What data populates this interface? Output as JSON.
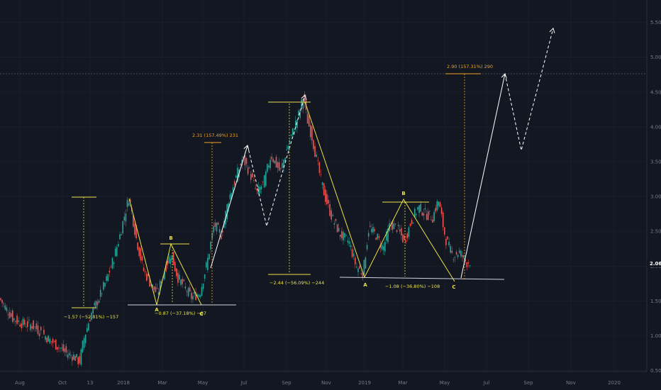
{
  "chart_data": {
    "type": "candlestick",
    "x_tick_labels": [
      "Aug",
      "Oct",
      "13",
      "2018",
      "Mar",
      "May",
      "Jul",
      "Sep",
      "Nov",
      "2019",
      "Mar",
      "May",
      "Jul",
      "Sep",
      "Nov",
      "2020"
    ],
    "y_tick_labels": [
      "0.50",
      "1.00",
      "1.50",
      "2.00",
      "2.50",
      "3.00",
      "3.50",
      "4.00",
      "4.50",
      "5.00",
      "5.50"
    ],
    "ylim": [
      0.5,
      5.55
    ],
    "last_price": "2.06",
    "price_path": [
      [
        0,
        1.53
      ],
      [
        8,
        1.4
      ],
      [
        18,
        1.25
      ],
      [
        30,
        1.18
      ],
      [
        45,
        1.15
      ],
      [
        58,
        1.05
      ],
      [
        72,
        0.92
      ],
      [
        85,
        0.82
      ],
      [
        95,
        0.74
      ],
      [
        105,
        0.7
      ],
      [
        112,
        0.62
      ],
      [
        118,
        0.95
      ],
      [
        128,
        1.3
      ],
      [
        140,
        1.55
      ],
      [
        150,
        1.8
      ],
      [
        160,
        2.1
      ],
      [
        168,
        2.4
      ],
      [
        176,
        2.75
      ],
      [
        182,
        3.0
      ],
      [
        192,
        2.4
      ],
      [
        202,
        1.95
      ],
      [
        212,
        1.75
      ],
      [
        222,
        1.6
      ],
      [
        232,
        1.95
      ],
      [
        241,
        2.18
      ],
      [
        250,
        1.85
      ],
      [
        260,
        1.7
      ],
      [
        270,
        1.55
      ],
      [
        282,
        1.62
      ],
      [
        292,
        2.05
      ],
      [
        302,
        2.6
      ],
      [
        312,
        2.45
      ],
      [
        322,
        2.95
      ],
      [
        332,
        3.25
      ],
      [
        342,
        3.55
      ],
      [
        352,
        3.35
      ],
      [
        362,
        3.05
      ],
      [
        372,
        3.2
      ],
      [
        382,
        3.6
      ],
      [
        395,
        3.35
      ],
      [
        405,
        3.7
      ],
      [
        415,
        4.0
      ],
      [
        422,
        4.2
      ],
      [
        428,
        4.45
      ],
      [
        432,
        4.15
      ],
      [
        440,
        3.85
      ],
      [
        450,
        3.35
      ],
      [
        458,
        3.0
      ],
      [
        468,
        2.7
      ],
      [
        480,
        2.45
      ],
      [
        492,
        2.35
      ],
      [
        502,
        2.0
      ],
      [
        512,
        1.9
      ],
      [
        520,
        2.55
      ],
      [
        530,
        2.45
      ],
      [
        540,
        2.25
      ],
      [
        550,
        2.6
      ],
      [
        560,
        2.55
      ],
      [
        570,
        2.35
      ],
      [
        580,
        2.65
      ],
      [
        590,
        2.85
      ],
      [
        600,
        2.75
      ],
      [
        610,
        2.7
      ],
      [
        618,
        2.95
      ],
      [
        628,
        2.4
      ],
      [
        638,
        2.15
      ],
      [
        648,
        2.2
      ],
      [
        658,
        2.05
      ],
      [
        665,
        2.08
      ]
    ],
    "fib_annotations": [
      {
        "text": "−1.57 (−52.81%) −157"
      },
      {
        "text": "−0.87 (−37.18%) −87"
      },
      {
        "text": "2.31 (157.49%) 231"
      },
      {
        "text": "−2.44 (−56.09%) −244"
      },
      {
        "text": "−1.08 (−36.80%) −108"
      },
      {
        "text": "2.90 (157.31%) 290"
      }
    ],
    "wave_labels": [
      {
        "text": "A"
      },
      {
        "text": "B"
      },
      {
        "text": "C"
      },
      {
        "text": "A"
      },
      {
        "text": "B"
      },
      {
        "text": "C"
      }
    ],
    "colors": {
      "background": "#131722",
      "up": "#26a69a",
      "down": "#ef5350",
      "wave": "#e8e24a",
      "measure": "#f0a020",
      "projection": "#ffffff",
      "axis_text": "#787b86",
      "crosshair": "#787b86"
    }
  }
}
